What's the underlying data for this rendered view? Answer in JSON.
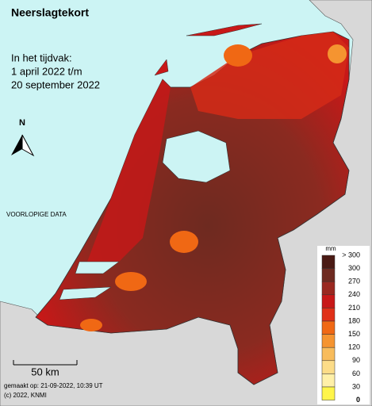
{
  "header": {
    "title": "Neerslagtekort",
    "period_label": "In het tijdvak:",
    "period_start": "1 april 2022 t/m",
    "period_end": "20 september 2022"
  },
  "north": "N",
  "status": "VOORLOPIGE DATA",
  "scale": "50 km",
  "footer": {
    "made": "gemaakt op: 21-09-2022, 10:39 UT",
    "copyright": "(c) 2022, KNMI"
  },
  "legend": {
    "unit": "mm",
    "labels": [
      "> 300",
      "300",
      "270",
      "240",
      "210",
      "180",
      "150",
      "120",
      "90",
      "60",
      "30",
      "0"
    ],
    "colors": [
      "#4a1a14",
      "#6e2a20",
      "#9a2820",
      "#c81818",
      "#e03018",
      "#f06814",
      "#f59430",
      "#f8bc5c",
      "#fcdc88",
      "#fff0a8",
      "#fff54a"
    ]
  }
}
